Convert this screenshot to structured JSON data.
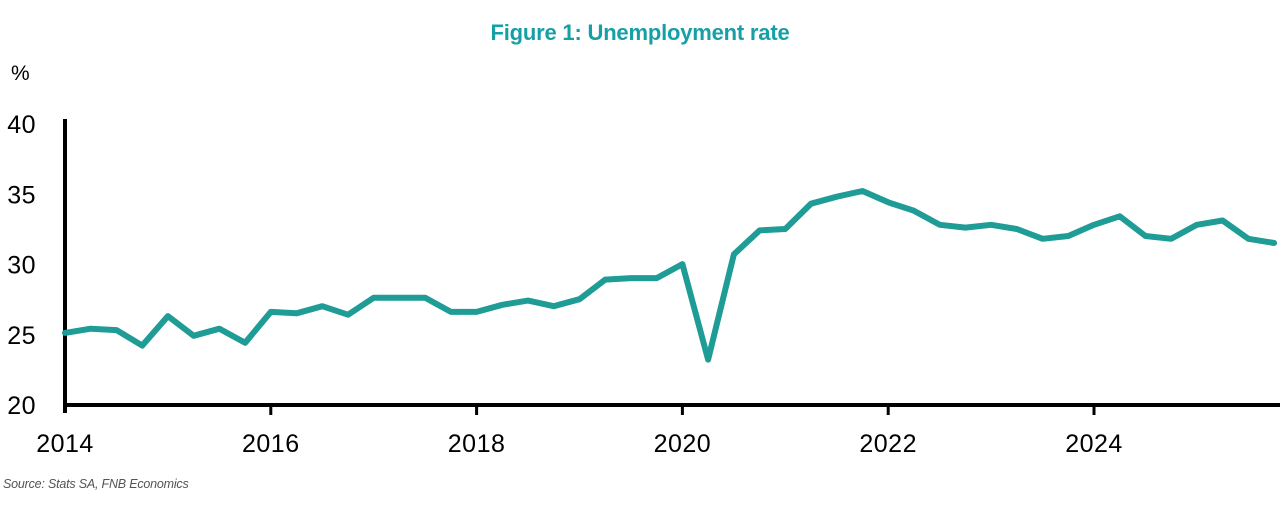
{
  "title": {
    "text": "Figure 1: Unemployment rate"
  },
  "y_axis": {
    "unit_label": "%",
    "ticks": [
      40,
      35,
      30,
      25,
      20
    ],
    "min": 20,
    "max": 40
  },
  "x_axis": {
    "labels": [
      "2014",
      "2016",
      "2018",
      "2020",
      "2022",
      "2024"
    ],
    "tick_years": [
      2016,
      2018,
      2020,
      2022,
      2024
    ]
  },
  "source": {
    "text": "Source: Stats SA, FNB Economics"
  },
  "colors": {
    "title": "#179FA6",
    "line": "#1E9C95",
    "axis": "#000000",
    "source_text": "#545454"
  },
  "chart_data": {
    "type": "line",
    "title": "Figure 1: Unemployment rate",
    "xlabel": "",
    "ylabel": "%",
    "ylim": [
      20,
      40
    ],
    "xlim": [
      2014.0,
      2025.85
    ],
    "grid": false,
    "legend": "none",
    "start_year": 2014,
    "points_per_year": 4,
    "categories": [
      "2014Q1",
      "2014Q2",
      "2014Q3",
      "2014Q4",
      "2015Q1",
      "2015Q2",
      "2015Q3",
      "2015Q4",
      "2016Q1",
      "2016Q2",
      "2016Q3",
      "2016Q4",
      "2017Q1",
      "2017Q2",
      "2017Q3",
      "2017Q4",
      "2018Q1",
      "2018Q2",
      "2018Q3",
      "2018Q4",
      "2019Q1",
      "2019Q2",
      "2019Q3",
      "2019Q4",
      "2020Q1",
      "2020Q2",
      "2020Q3",
      "2020Q4",
      "2021Q1",
      "2021Q2",
      "2021Q3",
      "2021Q4",
      "2022Q1",
      "2022Q2",
      "2022Q3",
      "2022Q4",
      "2023Q1",
      "2023Q2",
      "2023Q3",
      "2023Q4",
      "2024Q1",
      "2024Q2",
      "2024Q3",
      "2024Q4",
      "2025Q1",
      "2025Q2",
      "2025Q3",
      "2025Q4"
    ],
    "series": [
      {
        "name": "Unemployment rate (%)",
        "color": "#1E9C95",
        "values": [
          25.2,
          25.5,
          25.4,
          24.3,
          26.4,
          25.0,
          25.5,
          24.5,
          26.7,
          26.6,
          27.1,
          26.5,
          27.7,
          27.7,
          27.7,
          26.7,
          26.7,
          27.2,
          27.5,
          27.1,
          27.6,
          29.0,
          29.1,
          29.1,
          30.1,
          23.3,
          30.8,
          32.5,
          32.6,
          34.4,
          34.9,
          35.3,
          34.5,
          33.9,
          32.9,
          32.7,
          32.9,
          32.6,
          31.9,
          32.1,
          32.9,
          33.5,
          32.1,
          31.9,
          32.9,
          33.2,
          31.9,
          31.6
        ]
      }
    ]
  }
}
